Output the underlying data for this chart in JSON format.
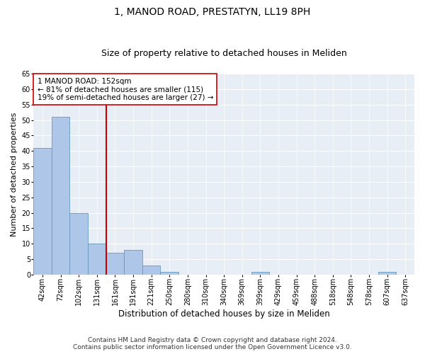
{
  "title_line1": "1, MANOD ROAD, PRESTATYN, LL19 8PH",
  "title_line2": "Size of property relative to detached houses in Meliden",
  "xlabel": "Distribution of detached houses by size in Meliden",
  "ylabel": "Number of detached properties",
  "bin_labels": [
    "42sqm",
    "72sqm",
    "102sqm",
    "131sqm",
    "161sqm",
    "191sqm",
    "221sqm",
    "250sqm",
    "280sqm",
    "310sqm",
    "340sqm",
    "369sqm",
    "399sqm",
    "429sqm",
    "459sqm",
    "488sqm",
    "518sqm",
    "548sqm",
    "578sqm",
    "607sqm",
    "637sqm"
  ],
  "bar_values": [
    41,
    51,
    20,
    10,
    7,
    8,
    3,
    1,
    0,
    0,
    0,
    0,
    1,
    0,
    0,
    0,
    0,
    0,
    0,
    1,
    0
  ],
  "bar_color": "#aec6e8",
  "bar_edge_color": "#6699bb",
  "vline_x": 3.5,
  "vline_color": "#cc0000",
  "annotation_text": "1 MANOD ROAD: 152sqm\n← 81% of detached houses are smaller (115)\n19% of semi-detached houses are larger (27) →",
  "annotation_box_color": "#ffffff",
  "annotation_box_edge_color": "#cc0000",
  "ylim": [
    0,
    65
  ],
  "yticks": [
    0,
    5,
    10,
    15,
    20,
    25,
    30,
    35,
    40,
    45,
    50,
    55,
    60,
    65
  ],
  "background_color": "#e8eef5",
  "footer_text": "Contains HM Land Registry data © Crown copyright and database right 2024.\nContains public sector information licensed under the Open Government Licence v3.0.",
  "title_fontsize": 10,
  "subtitle_fontsize": 9,
  "xlabel_fontsize": 8.5,
  "ylabel_fontsize": 8,
  "tick_fontsize": 7,
  "annotation_fontsize": 7.5,
  "footer_fontsize": 6.5
}
